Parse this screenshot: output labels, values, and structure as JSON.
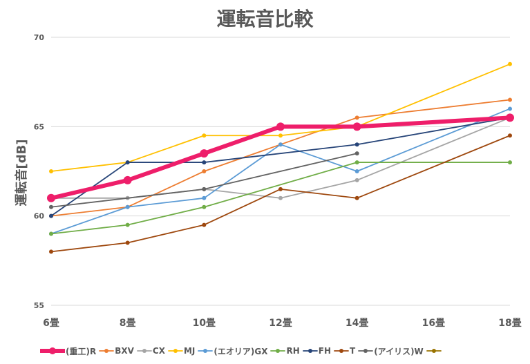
{
  "chart_data": {
    "type": "line",
    "title": "運転音比較",
    "ylabel": "運転音[dB]",
    "xlabel": "",
    "categories": [
      "6畳",
      "8畳",
      "10畳",
      "12畳",
      "14畳",
      "16畳",
      "18畳"
    ],
    "yticks": [
      "55",
      "60",
      "65",
      "70"
    ],
    "ylim": [
      55,
      70
    ],
    "grid": "horizontal",
    "legend_position": "bottom",
    "series": [
      {
        "name": "(重工)R",
        "color": "#ee1e6a",
        "bold": true,
        "values": [
          61,
          62,
          63.5,
          65,
          65,
          null,
          65.5
        ]
      },
      {
        "name": "BXV",
        "color": "#ed7d31",
        "values": [
          60,
          60.5,
          62.5,
          64,
          65.5,
          null,
          66.5
        ]
      },
      {
        "name": "CX",
        "color": "#a5a5a5",
        "values": [
          61,
          61,
          61.5,
          61,
          62,
          null,
          65.5
        ]
      },
      {
        "name": "MJ",
        "color": "#ffc000",
        "values": [
          62.5,
          63,
          64.5,
          64.5,
          65,
          null,
          68.5
        ]
      },
      {
        "name": "(エオリア)GX",
        "color": "#5b9bd5",
        "values": [
          59,
          60.5,
          61,
          64,
          62.5,
          null,
          66
        ]
      },
      {
        "name": "RH",
        "color": "#70ad47",
        "values": [
          59,
          59.5,
          60.5,
          null,
          63,
          null,
          63
        ]
      },
      {
        "name": "FH",
        "color": "#264478",
        "values": [
          60,
          63,
          63,
          null,
          64,
          null,
          65.5
        ]
      },
      {
        "name": "T",
        "color": "#9e480e",
        "values": [
          58,
          58.5,
          59.5,
          61.5,
          61,
          null,
          64.5
        ]
      },
      {
        "name": "(アイリス)W",
        "color": "#636363",
        "values": [
          60.5,
          null,
          61.5,
          null,
          63.5,
          null,
          null
        ]
      },
      {
        "name": "",
        "color": "#997300",
        "values": [
          null,
          null,
          null,
          null,
          null,
          null,
          null
        ]
      }
    ]
  }
}
